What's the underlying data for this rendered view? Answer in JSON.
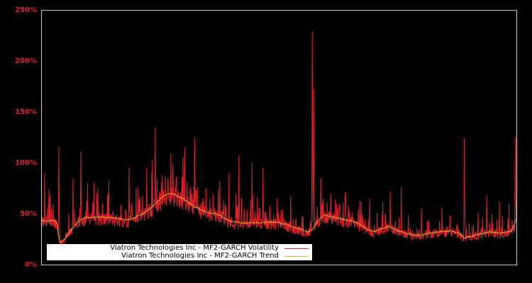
{
  "chart_data": {
    "type": "line",
    "title": "",
    "xlabel": "",
    "ylabel": "",
    "ylim": [
      0,
      250
    ],
    "y_ticks": [
      "0%",
      "50%",
      "100%",
      "150%",
      "200%",
      "250%"
    ],
    "y_tick_values": [
      0,
      50,
      100,
      150,
      200,
      250
    ],
    "grid": false,
    "legend_position": "lower left",
    "background": "#000000",
    "frame_color": "#cccccc",
    "tick_color": "#e0202a",
    "series": [
      {
        "name": "Viatron Technologies Inc - MF2-GARCH Volatility",
        "color": "#e0202a",
        "description": "Daily volatility oscillating around trend with spikes",
        "spikes_x_fraction_and_peak_pct": [
          [
            0.006,
            90
          ],
          [
            0.015,
            74
          ],
          [
            0.036,
            116
          ],
          [
            0.066,
            85
          ],
          [
            0.082,
            111
          ],
          [
            0.096,
            80
          ],
          [
            0.11,
            80
          ],
          [
            0.14,
            70
          ],
          [
            0.184,
            95
          ],
          [
            0.199,
            75
          ],
          [
            0.221,
            95
          ],
          [
            0.233,
            103
          ],
          [
            0.239,
            135
          ],
          [
            0.254,
            88
          ],
          [
            0.266,
            85
          ],
          [
            0.301,
            115
          ],
          [
            0.322,
            125
          ],
          [
            0.346,
            75
          ],
          [
            0.372,
            74
          ],
          [
            0.394,
            90
          ],
          [
            0.415,
            107
          ],
          [
            0.443,
            100
          ],
          [
            0.466,
            95
          ],
          [
            0.496,
            65
          ],
          [
            0.524,
            68
          ],
          [
            0.57,
            229
          ],
          [
            0.573,
            172
          ],
          [
            0.588,
            85
          ],
          [
            0.609,
            70
          ],
          [
            0.64,
            70
          ],
          [
            0.691,
            65
          ],
          [
            0.734,
            72
          ],
          [
            0.757,
            76
          ],
          [
            0.8,
            55
          ],
          [
            0.89,
            124
          ],
          [
            0.937,
            68
          ],
          [
            0.964,
            62
          ],
          [
            0.984,
            60
          ],
          [
            0.998,
            125
          ]
        ]
      },
      {
        "name": "Viatron Technologies Inc - MF2-GARCH Trend",
        "color": "#e8b030",
        "trend_x_fraction_and_pct": [
          [
            0.0,
            43
          ],
          [
            0.03,
            43
          ],
          [
            0.034,
            38
          ],
          [
            0.036,
            22
          ],
          [
            0.045,
            23
          ],
          [
            0.06,
            33
          ],
          [
            0.075,
            42
          ],
          [
            0.09,
            46
          ],
          [
            0.12,
            47
          ],
          [
            0.15,
            46
          ],
          [
            0.18,
            44
          ],
          [
            0.2,
            47
          ],
          [
            0.22,
            52
          ],
          [
            0.24,
            60
          ],
          [
            0.258,
            68
          ],
          [
            0.27,
            70
          ],
          [
            0.285,
            68
          ],
          [
            0.3,
            64
          ],
          [
            0.32,
            57
          ],
          [
            0.345,
            52
          ],
          [
            0.365,
            50
          ],
          [
            0.38,
            47
          ],
          [
            0.395,
            43
          ],
          [
            0.42,
            41
          ],
          [
            0.46,
            41
          ],
          [
            0.49,
            42
          ],
          [
            0.51,
            40
          ],
          [
            0.53,
            37
          ],
          [
            0.55,
            34
          ],
          [
            0.56,
            32
          ],
          [
            0.57,
            34
          ],
          [
            0.58,
            42
          ],
          [
            0.595,
            49
          ],
          [
            0.61,
            47
          ],
          [
            0.63,
            45
          ],
          [
            0.65,
            43
          ],
          [
            0.665,
            41
          ],
          [
            0.68,
            36
          ],
          [
            0.7,
            32
          ],
          [
            0.715,
            35
          ],
          [
            0.73,
            38
          ],
          [
            0.745,
            34
          ],
          [
            0.76,
            32
          ],
          [
            0.78,
            29
          ],
          [
            0.8,
            29
          ],
          [
            0.82,
            31
          ],
          [
            0.84,
            32
          ],
          [
            0.86,
            33
          ],
          [
            0.88,
            31
          ],
          [
            0.89,
            26
          ],
          [
            0.905,
            28
          ],
          [
            0.925,
            30
          ],
          [
            0.945,
            32
          ],
          [
            0.965,
            31
          ],
          [
            0.985,
            32
          ],
          [
            0.992,
            35
          ],
          [
            1.0,
            45
          ]
        ]
      }
    ]
  },
  "axis": {
    "ticks": [
      {
        "label": "250%",
        "value": 250
      },
      {
        "label": "200%",
        "value": 200
      },
      {
        "label": "150%",
        "value": 150
      },
      {
        "label": "100%",
        "value": 100
      },
      {
        "label": "50%",
        "value": 50
      },
      {
        "label": "0%",
        "value": 0
      }
    ]
  },
  "legend": {
    "items": [
      {
        "label": "Viatron Technologies Inc - MF2-GARCH Volatility",
        "color": "#e0202a"
      },
      {
        "label": "Viatron Technologies Inc - MF2-GARCH Trend",
        "color": "#e8b030"
      }
    ]
  }
}
